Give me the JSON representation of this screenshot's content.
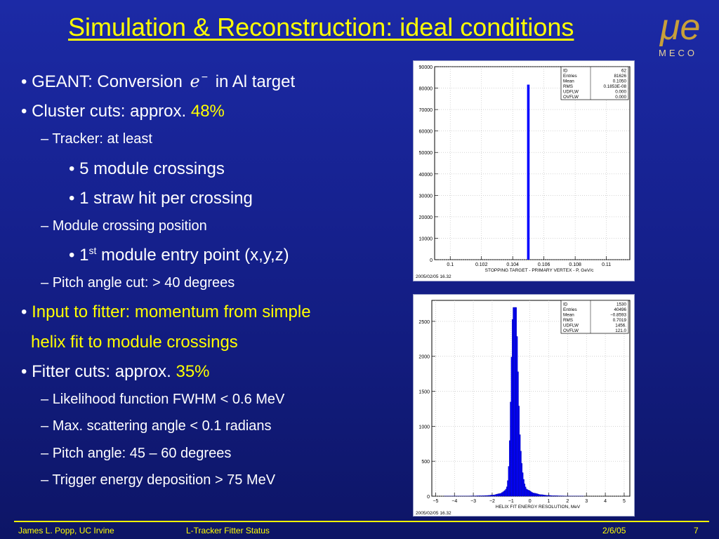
{
  "slide": {
    "title": "Simulation & Reconstruction: ideal conditions",
    "logo_text": "MECO",
    "logo_glyph": "μe",
    "bullets": [
      {
        "level": 1,
        "marker": "•",
        "parts": [
          "GEANT: Conversion ",
          "e",
          "−",
          " in Al target"
        ]
      },
      {
        "level": 1,
        "marker": "•",
        "text": "Cluster cuts: approx. ",
        "highlight": "48%"
      },
      {
        "level": 2,
        "marker": "–",
        "text": "Tracker: at least"
      },
      {
        "level": 3,
        "marker": "•",
        "text": "5 module crossings"
      },
      {
        "level": 3,
        "marker": "•",
        "text": "1 straw hit per crossing"
      },
      {
        "level": 2,
        "marker": "–",
        "text": "Module crossing position"
      },
      {
        "level": 3,
        "marker": "•",
        "parts": [
          "1",
          "st",
          " module entry point (x,y,z)"
        ]
      },
      {
        "level": 2,
        "marker": "–",
        "text": "Pitch angle cut: > 40 degrees"
      },
      {
        "level": 1,
        "marker": "•",
        "highlight": "Input to fitter: momentum from simple"
      },
      {
        "level": 1,
        "marker": "",
        "highlight": "helix fit to module crossings"
      },
      {
        "level": 1,
        "marker": "•",
        "text": "Fitter cuts: approx. ",
        "highlight": "35%"
      },
      {
        "level": 2,
        "marker": "–",
        "text": "Likelihood function FWHM < 0.6 MeV"
      },
      {
        "level": 2,
        "marker": "–",
        "text": "Max. scattering angle < 0.1 radians"
      },
      {
        "level": 2,
        "marker": "–",
        "text": "Pitch angle: 45 – 60 degrees"
      },
      {
        "level": 2,
        "marker": "–",
        "text": "Trigger energy deposition > 75 MeV"
      }
    ]
  },
  "footer": {
    "author": "James L. Popp, UC Irvine",
    "talk": "L-Tracker Fitter Status",
    "date": "2/6/05",
    "page": "7"
  },
  "colors": {
    "highlight": "#ffff00",
    "background": "#1c2aa6",
    "hist": "#0000ff"
  },
  "chart_data": [
    {
      "type": "bar",
      "xlabel": "STOPPING TARGET - PRIMARY VERTEX - P, GeV/c",
      "timestamp": "2005/02/05   16.32",
      "xlim": [
        0.099,
        0.1115
      ],
      "ylim": [
        0,
        90000
      ],
      "xticks": [
        "0.1",
        "0.102",
        "0.104",
        "0.106",
        "0.108",
        "0.11"
      ],
      "yticks": [
        "0",
        "10000",
        "20000",
        "30000",
        "40000",
        "50000",
        "60000",
        "70000",
        "80000",
        "90000"
      ],
      "bins": [
        {
          "x": 0.105,
          "value": 81626
        }
      ],
      "stats": [
        [
          "ID",
          "62"
        ],
        [
          "Entries",
          "81626"
        ],
        [
          "Mean",
          "0.1050"
        ],
        [
          "RMS",
          "0.1853E-08"
        ],
        [
          "UDFLW",
          "0.000"
        ],
        [
          "OVFLW",
          "0.000"
        ]
      ],
      "grid": true
    },
    {
      "type": "bar",
      "xlabel": "HELIX FIT ENERGY RESOLUTION, MeV",
      "timestamp": "2005/02/05   16.32",
      "xlim": [
        -5.2,
        5.3
      ],
      "ylim": [
        0,
        2800
      ],
      "xticks": [
        "−5",
        "−4",
        "−3",
        "−2",
        "−1",
        "0",
        "1",
        "2",
        "3",
        "4",
        "5"
      ],
      "yticks": [
        "0",
        "500",
        "1000",
        "1500",
        "2000",
        "2500"
      ],
      "peak": {
        "x": -0.85,
        "value": 2700
      },
      "stats": [
        [
          "ID",
          "1530"
        ],
        [
          "Entries",
          "40496"
        ],
        [
          "Mean",
          "−0.8593"
        ],
        [
          "RMS",
          "0.7019"
        ],
        [
          "UDFLW",
          "1456."
        ],
        [
          "OVFLW",
          "121.0"
        ]
      ],
      "grid": true
    }
  ]
}
